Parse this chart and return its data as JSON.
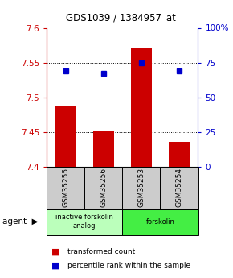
{
  "title": "GDS1039 / 1384957_at",
  "categories": [
    "GSM35255",
    "GSM35256",
    "GSM35253",
    "GSM35254"
  ],
  "bar_values": [
    7.487,
    7.451,
    7.571,
    7.436
  ],
  "percentile_values": [
    69,
    67,
    75,
    69
  ],
  "ylim_left": [
    7.4,
    7.6
  ],
  "ylim_right": [
    0,
    100
  ],
  "yticks_left": [
    7.4,
    7.45,
    7.5,
    7.55,
    7.6
  ],
  "yticks_right": [
    0,
    25,
    50,
    75,
    100
  ],
  "ytick_labels_right": [
    "0",
    "25",
    "50",
    "75",
    "100%"
  ],
  "bar_color": "#cc0000",
  "dot_color": "#0000cc",
  "bar_bottom": 7.4,
  "groups": [
    {
      "label": "inactive forskolin\nanalog",
      "color": "#bbffbb",
      "cols": [
        0,
        1
      ]
    },
    {
      "label": "forskolin",
      "color": "#44ee44",
      "cols": [
        2,
        3
      ]
    }
  ],
  "left_axis_color": "#cc0000",
  "right_axis_color": "#0000cc",
  "sample_box_color": "#cccccc",
  "legend_bar_label": "transformed count",
  "legend_dot_label": "percentile rank within the sample"
}
